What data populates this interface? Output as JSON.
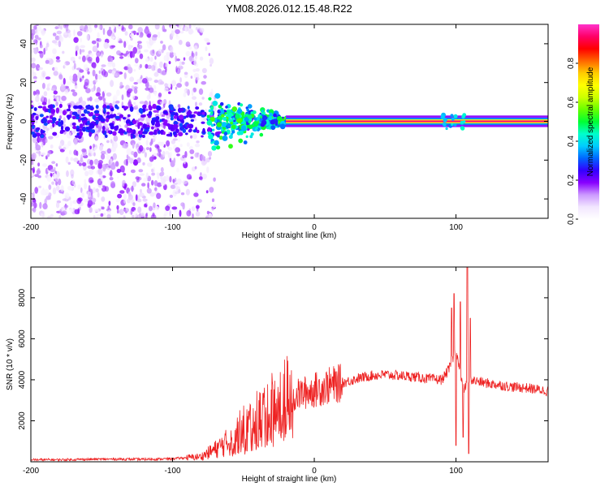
{
  "title": "YM08.2026.012.15.48.R22",
  "chart_data": [
    {
      "type": "heatmap",
      "xlabel": "Height of straight line (km)",
      "ylabel": "Frequency (Hz)",
      "xlim": [
        -200,
        165
      ],
      "ylim": [
        -50,
        50
      ],
      "xticks": [
        -200,
        -100,
        0,
        100
      ],
      "yticks": [
        -40,
        -20,
        0,
        20,
        40
      ],
      "colorbar": {
        "label": "Normalized spectral amplitude",
        "range": [
          0,
          1
        ],
        "ticks": [
          0.0,
          0.2,
          0.4,
          0.6,
          0.8
        ],
        "tick_labels": [
          "0.0",
          "0.2",
          "0.4",
          "0.6",
          "0.8"
        ],
        "colors": [
          "#ffffff",
          "#f2e6ff",
          "#cc99ff",
          "#8800ff",
          "#3300ff",
          "#0066ff",
          "#00ccff",
          "#00ffcc",
          "#00ff33",
          "#66ff00",
          "#ccff00",
          "#ffff00",
          "#ffcc00",
          "#ff6600",
          "#ff0000",
          "#ff0066",
          "#ff33cc"
        ]
      },
      "features": [
        {
          "name": "carrier line",
          "x_range": [
            -20,
            165
          ],
          "frequency": 0,
          "amplitude": 0.95
        },
        {
          "name": "diffuse noise",
          "x_range": [
            -200,
            -80
          ],
          "frequency_range": [
            -50,
            50
          ],
          "amplitude": 0.15
        },
        {
          "name": "transition scatter",
          "x_range": [
            -80,
            -20
          ],
          "frequency_range": [
            -20,
            20
          ],
          "amplitude": 0.3
        }
      ]
    },
    {
      "type": "line",
      "xlabel": "Height of straight line (km)",
      "ylabel": "SNR (10 * v/v)",
      "xlim": [
        -200,
        165
      ],
      "ylim": [
        0,
        9500
      ],
      "xticks": [
        -200,
        -100,
        0,
        100
      ],
      "yticks": [
        2000,
        4000,
        6000,
        8000
      ],
      "series": [
        {
          "name": "SNR",
          "color": "#ee2222",
          "x": [
            -200,
            -180,
            -160,
            -140,
            -120,
            -100,
            -90,
            -80,
            -70,
            -60,
            -50,
            -40,
            -30,
            -20,
            -10,
            0,
            10,
            20,
            30,
            40,
            50,
            60,
            70,
            80,
            90,
            95,
            100,
            105,
            110,
            120,
            130,
            140,
            150,
            165
          ],
          "y": [
            100,
            100,
            120,
            130,
            120,
            150,
            200,
            250,
            600,
            1000,
            1600,
            2100,
            2600,
            3000,
            3300,
            3500,
            3700,
            3850,
            4050,
            4200,
            4250,
            4200,
            4150,
            4050,
            4000,
            4500,
            5500,
            3500,
            4000,
            3850,
            3750,
            3650,
            3600,
            3450
          ],
          "spikes": [
            {
              "x": 97,
              "y": 7500
            },
            {
              "x": 98.5,
              "y": 8200
            },
            {
              "x": 100,
              "y": 800
            },
            {
              "x": 103,
              "y": 7800
            },
            {
              "x": 105,
              "y": 1200
            },
            {
              "x": 108,
              "y": 9500
            },
            {
              "x": 109,
              "y": 400
            },
            {
              "x": 110,
              "y": 7000
            }
          ]
        }
      ]
    }
  ]
}
